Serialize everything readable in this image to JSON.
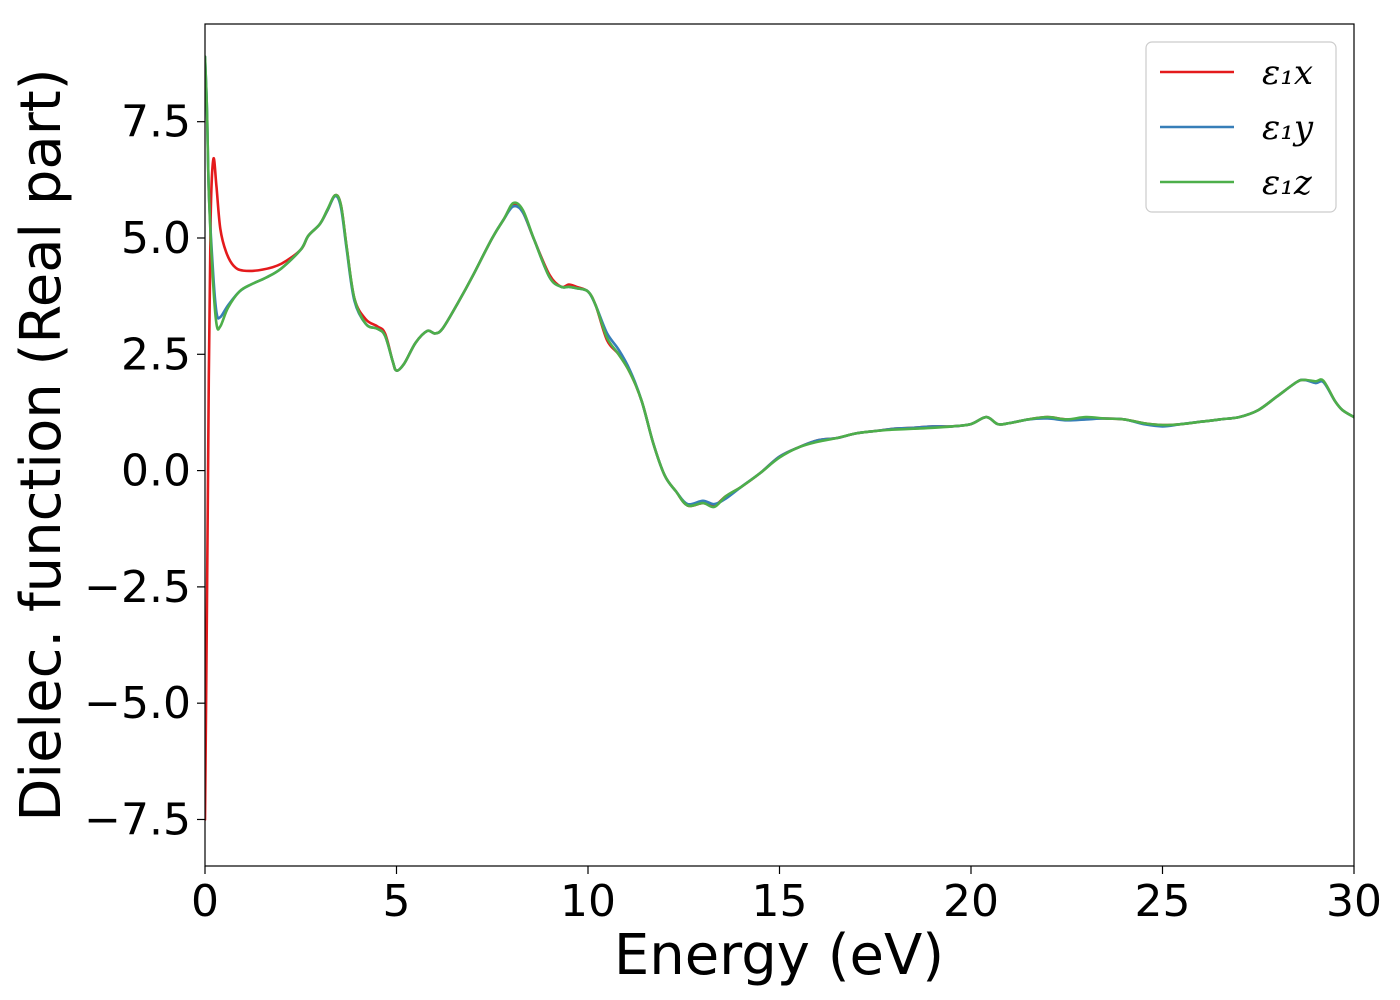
{
  "chart_data": {
    "type": "line",
    "title": "",
    "xlabel": "Energy (eV)",
    "ylabel": "Dielec. function (Real part)",
    "xlim": [
      0,
      30
    ],
    "ylim": [
      -8.5,
      9.6
    ],
    "x_ticks": [
      0,
      5,
      10,
      15,
      20,
      25,
      30
    ],
    "x_tick_labels": [
      "0",
      "5",
      "10",
      "15",
      "20",
      "25",
      "30"
    ],
    "y_ticks": [
      -7.5,
      -5.0,
      -2.5,
      0.0,
      2.5,
      5.0,
      7.5
    ],
    "y_tick_labels": [
      "−7.5",
      "−5.0",
      "−2.5",
      "0.0",
      "2.5",
      "5.0",
      "7.5"
    ],
    "grid": false,
    "legend_position": "top-right",
    "series": [
      {
        "name": "ε₁x",
        "color": "#e41a1c",
        "points": [
          [
            0.0,
            -7.5
          ],
          [
            0.05,
            -3.0
          ],
          [
            0.1,
            2.0
          ],
          [
            0.15,
            5.5
          ],
          [
            0.22,
            6.7
          ],
          [
            0.3,
            6.1
          ],
          [
            0.4,
            5.2
          ],
          [
            0.55,
            4.7
          ],
          [
            0.75,
            4.4
          ],
          [
            1.0,
            4.3
          ],
          [
            1.5,
            4.32
          ],
          [
            2.0,
            4.45
          ],
          [
            2.5,
            4.75
          ],
          [
            2.7,
            5.05
          ],
          [
            3.0,
            5.3
          ],
          [
            3.2,
            5.6
          ],
          [
            3.4,
            5.92
          ],
          [
            3.55,
            5.7
          ],
          [
            3.7,
            4.8
          ],
          [
            3.9,
            3.7
          ],
          [
            4.2,
            3.25
          ],
          [
            4.5,
            3.1
          ],
          [
            4.7,
            2.95
          ],
          [
            4.9,
            2.35
          ],
          [
            5.0,
            2.15
          ],
          [
            5.2,
            2.3
          ],
          [
            5.5,
            2.75
          ],
          [
            5.8,
            3.0
          ],
          [
            6.0,
            2.95
          ],
          [
            6.2,
            3.05
          ],
          [
            6.6,
            3.6
          ],
          [
            7.0,
            4.2
          ],
          [
            7.5,
            5.0
          ],
          [
            7.8,
            5.4
          ],
          [
            8.05,
            5.72
          ],
          [
            8.3,
            5.55
          ],
          [
            8.6,
            4.95
          ],
          [
            9.0,
            4.2
          ],
          [
            9.3,
            3.95
          ],
          [
            9.5,
            4.0
          ],
          [
            9.7,
            3.95
          ],
          [
            10.0,
            3.85
          ],
          [
            10.2,
            3.55
          ],
          [
            10.5,
            2.8
          ],
          [
            10.8,
            2.5
          ],
          [
            11.1,
            2.1
          ],
          [
            11.4,
            1.5
          ],
          [
            11.7,
            0.6
          ],
          [
            12.0,
            -0.1
          ],
          [
            12.3,
            -0.45
          ],
          [
            12.6,
            -0.75
          ],
          [
            13.0,
            -0.7
          ],
          [
            13.3,
            -0.75
          ],
          [
            13.6,
            -0.55
          ],
          [
            14.0,
            -0.35
          ],
          [
            14.5,
            -0.05
          ],
          [
            15.0,
            0.3
          ],
          [
            15.5,
            0.5
          ],
          [
            16.0,
            0.65
          ],
          [
            16.5,
            0.7
          ],
          [
            17.0,
            0.8
          ],
          [
            17.5,
            0.85
          ],
          [
            18.0,
            0.9
          ],
          [
            18.5,
            0.92
          ],
          [
            19.0,
            0.95
          ],
          [
            19.5,
            0.95
          ],
          [
            20.0,
            1.0
          ],
          [
            20.4,
            1.15
          ],
          [
            20.7,
            1.0
          ],
          [
            21.0,
            1.02
          ],
          [
            21.5,
            1.1
          ],
          [
            22.0,
            1.15
          ],
          [
            22.5,
            1.1
          ],
          [
            23.0,
            1.12
          ],
          [
            23.5,
            1.12
          ],
          [
            24.0,
            1.1
          ],
          [
            24.5,
            1.02
          ],
          [
            25.0,
            0.98
          ],
          [
            25.5,
            1.0
          ],
          [
            26.0,
            1.05
          ],
          [
            26.5,
            1.1
          ],
          [
            27.0,
            1.15
          ],
          [
            27.5,
            1.3
          ],
          [
            28.0,
            1.6
          ],
          [
            28.5,
            1.9
          ],
          [
            28.7,
            1.95
          ],
          [
            29.0,
            1.9
          ],
          [
            29.2,
            1.92
          ],
          [
            29.5,
            1.5
          ],
          [
            29.7,
            1.3
          ],
          [
            30.0,
            1.15
          ]
        ]
      },
      {
        "name": "ε₁y",
        "color": "#377eb8",
        "points": [
          [
            0.0,
            8.9
          ],
          [
            0.05,
            7.8
          ],
          [
            0.1,
            6.0
          ],
          [
            0.2,
            4.4
          ],
          [
            0.3,
            3.4
          ],
          [
            0.4,
            3.3
          ],
          [
            0.6,
            3.55
          ],
          [
            0.9,
            3.85
          ],
          [
            1.2,
            4.0
          ],
          [
            1.6,
            4.15
          ],
          [
            2.0,
            4.35
          ],
          [
            2.5,
            4.75
          ],
          [
            2.7,
            5.05
          ],
          [
            3.0,
            5.3
          ],
          [
            3.2,
            5.6
          ],
          [
            3.4,
            5.9
          ],
          [
            3.55,
            5.65
          ],
          [
            3.7,
            4.75
          ],
          [
            3.9,
            3.65
          ],
          [
            4.2,
            3.15
          ],
          [
            4.5,
            3.05
          ],
          [
            4.7,
            2.9
          ],
          [
            4.9,
            2.35
          ],
          [
            5.0,
            2.15
          ],
          [
            5.2,
            2.3
          ],
          [
            5.5,
            2.75
          ],
          [
            5.8,
            3.0
          ],
          [
            6.0,
            2.95
          ],
          [
            6.2,
            3.05
          ],
          [
            6.6,
            3.6
          ],
          [
            7.0,
            4.2
          ],
          [
            7.5,
            5.0
          ],
          [
            7.8,
            5.4
          ],
          [
            8.05,
            5.68
          ],
          [
            8.3,
            5.55
          ],
          [
            8.6,
            4.95
          ],
          [
            9.0,
            4.15
          ],
          [
            9.3,
            3.95
          ],
          [
            9.5,
            3.95
          ],
          [
            9.7,
            3.92
          ],
          [
            10.0,
            3.85
          ],
          [
            10.2,
            3.55
          ],
          [
            10.5,
            2.95
          ],
          [
            10.8,
            2.6
          ],
          [
            11.1,
            2.15
          ],
          [
            11.4,
            1.5
          ],
          [
            11.7,
            0.6
          ],
          [
            12.0,
            -0.1
          ],
          [
            12.3,
            -0.45
          ],
          [
            12.6,
            -0.72
          ],
          [
            13.0,
            -0.65
          ],
          [
            13.3,
            -0.72
          ],
          [
            13.6,
            -0.6
          ],
          [
            14.0,
            -0.35
          ],
          [
            14.5,
            -0.05
          ],
          [
            15.0,
            0.3
          ],
          [
            15.5,
            0.5
          ],
          [
            16.0,
            0.65
          ],
          [
            16.5,
            0.7
          ],
          [
            17.0,
            0.8
          ],
          [
            17.5,
            0.85
          ],
          [
            18.0,
            0.9
          ],
          [
            18.5,
            0.92
          ],
          [
            19.0,
            0.95
          ],
          [
            19.5,
            0.95
          ],
          [
            20.0,
            1.0
          ],
          [
            20.4,
            1.15
          ],
          [
            20.7,
            1.0
          ],
          [
            21.0,
            1.02
          ],
          [
            21.5,
            1.1
          ],
          [
            22.0,
            1.12
          ],
          [
            22.5,
            1.08
          ],
          [
            23.0,
            1.1
          ],
          [
            23.5,
            1.12
          ],
          [
            24.0,
            1.1
          ],
          [
            24.5,
            1.0
          ],
          [
            25.0,
            0.95
          ],
          [
            25.5,
            1.0
          ],
          [
            26.0,
            1.05
          ],
          [
            26.5,
            1.1
          ],
          [
            27.0,
            1.15
          ],
          [
            27.5,
            1.3
          ],
          [
            28.0,
            1.6
          ],
          [
            28.5,
            1.9
          ],
          [
            28.7,
            1.95
          ],
          [
            29.0,
            1.88
          ],
          [
            29.2,
            1.9
          ],
          [
            29.5,
            1.5
          ],
          [
            29.7,
            1.3
          ],
          [
            30.0,
            1.15
          ]
        ]
      },
      {
        "name": "ε₁z",
        "color": "#4daf4a",
        "points": [
          [
            0.0,
            8.9
          ],
          [
            0.05,
            7.8
          ],
          [
            0.1,
            6.0
          ],
          [
            0.2,
            4.2
          ],
          [
            0.3,
            3.15
          ],
          [
            0.4,
            3.1
          ],
          [
            0.6,
            3.5
          ],
          [
            0.9,
            3.85
          ],
          [
            1.2,
            4.0
          ],
          [
            1.6,
            4.15
          ],
          [
            2.0,
            4.35
          ],
          [
            2.5,
            4.75
          ],
          [
            2.7,
            5.05
          ],
          [
            3.0,
            5.3
          ],
          [
            3.2,
            5.62
          ],
          [
            3.4,
            5.92
          ],
          [
            3.55,
            5.7
          ],
          [
            3.7,
            4.8
          ],
          [
            3.9,
            3.7
          ],
          [
            4.2,
            3.15
          ],
          [
            4.5,
            3.05
          ],
          [
            4.7,
            2.9
          ],
          [
            4.9,
            2.35
          ],
          [
            5.0,
            2.15
          ],
          [
            5.2,
            2.3
          ],
          [
            5.5,
            2.75
          ],
          [
            5.8,
            3.0
          ],
          [
            6.0,
            2.95
          ],
          [
            6.2,
            3.05
          ],
          [
            6.6,
            3.6
          ],
          [
            7.0,
            4.2
          ],
          [
            7.5,
            5.0
          ],
          [
            7.8,
            5.4
          ],
          [
            8.05,
            5.75
          ],
          [
            8.3,
            5.6
          ],
          [
            8.6,
            4.95
          ],
          [
            9.0,
            4.15
          ],
          [
            9.3,
            3.95
          ],
          [
            9.5,
            3.95
          ],
          [
            9.7,
            3.92
          ],
          [
            10.0,
            3.85
          ],
          [
            10.2,
            3.55
          ],
          [
            10.5,
            2.85
          ],
          [
            10.8,
            2.5
          ],
          [
            11.1,
            2.1
          ],
          [
            11.4,
            1.5
          ],
          [
            11.7,
            0.6
          ],
          [
            12.0,
            -0.1
          ],
          [
            12.3,
            -0.45
          ],
          [
            12.6,
            -0.75
          ],
          [
            13.0,
            -0.7
          ],
          [
            13.3,
            -0.78
          ],
          [
            13.6,
            -0.55
          ],
          [
            14.0,
            -0.35
          ],
          [
            14.5,
            -0.05
          ],
          [
            15.0,
            0.28
          ],
          [
            15.5,
            0.5
          ],
          [
            16.0,
            0.62
          ],
          [
            16.5,
            0.7
          ],
          [
            17.0,
            0.8
          ],
          [
            17.5,
            0.85
          ],
          [
            18.0,
            0.88
          ],
          [
            18.5,
            0.9
          ],
          [
            19.0,
            0.92
          ],
          [
            19.5,
            0.95
          ],
          [
            20.0,
            1.0
          ],
          [
            20.4,
            1.15
          ],
          [
            20.7,
            1.0
          ],
          [
            21.0,
            1.02
          ],
          [
            21.5,
            1.1
          ],
          [
            22.0,
            1.15
          ],
          [
            22.5,
            1.1
          ],
          [
            23.0,
            1.15
          ],
          [
            23.5,
            1.12
          ],
          [
            24.0,
            1.1
          ],
          [
            24.5,
            1.02
          ],
          [
            25.0,
            0.98
          ],
          [
            25.5,
            1.0
          ],
          [
            26.0,
            1.05
          ],
          [
            26.5,
            1.1
          ],
          [
            27.0,
            1.15
          ],
          [
            27.5,
            1.3
          ],
          [
            28.0,
            1.6
          ],
          [
            28.5,
            1.9
          ],
          [
            28.7,
            1.95
          ],
          [
            29.0,
            1.92
          ],
          [
            29.2,
            1.93
          ],
          [
            29.5,
            1.5
          ],
          [
            29.7,
            1.3
          ],
          [
            30.0,
            1.15
          ]
        ]
      }
    ]
  }
}
